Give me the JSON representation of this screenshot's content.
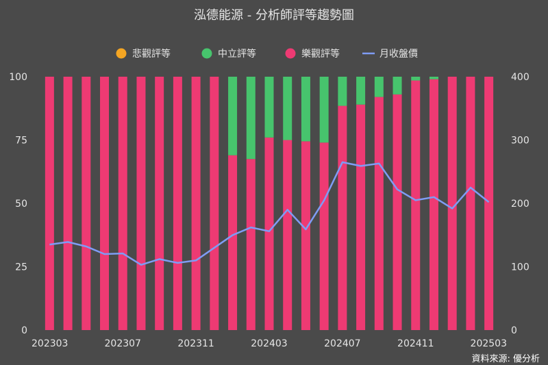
{
  "chart_data": {
    "type": "bar",
    "title": "泓德能源 - 分析師評等趨勢圖",
    "source": "資料來源: 優分析",
    "categories": [
      "202303",
      "202304",
      "202305",
      "202306",
      "202307",
      "202308",
      "202309",
      "202310",
      "202311",
      "202312",
      "202401",
      "202402",
      "202403",
      "202404",
      "202405",
      "202406",
      "202407",
      "202408",
      "202409",
      "202410",
      "202411",
      "202412",
      "202501",
      "202502",
      "202503"
    ],
    "x_tick_labels": [
      "202303",
      "202307",
      "202311",
      "202403",
      "202407",
      "202411",
      "202503"
    ],
    "x_tick_indices": [
      0,
      4,
      8,
      12,
      16,
      20,
      24
    ],
    "series": [
      {
        "name": "悲觀評等",
        "color": "#f5a623",
        "type": "bar",
        "values": [
          0,
          0,
          0,
          0,
          0,
          0,
          0,
          0,
          0,
          0,
          0,
          0,
          0,
          0,
          0,
          0,
          0,
          0,
          0,
          0,
          0,
          0,
          0,
          0,
          0
        ]
      },
      {
        "name": "中立評等",
        "color": "#47c46d",
        "type": "bar",
        "values": [
          0,
          0,
          0,
          0,
          0,
          0,
          0,
          0,
          0,
          0,
          31,
          32.5,
          24,
          25,
          25.5,
          26,
          11.5,
          11,
          8,
          7,
          1.5,
          1,
          0,
          0,
          0
        ]
      },
      {
        "name": "樂觀評等",
        "color": "#ee3a73",
        "type": "bar",
        "values": [
          100,
          100,
          100,
          100,
          100,
          100,
          100,
          100,
          100,
          100,
          69,
          67.5,
          76,
          75,
          74.5,
          74,
          88.5,
          89,
          92,
          93,
          98.5,
          99,
          100,
          100,
          100
        ]
      },
      {
        "name": "月收盤價",
        "color": "#7f9cf5",
        "type": "line",
        "axis": "right",
        "values": [
          135,
          139,
          132,
          120,
          121,
          103,
          112,
          106,
          110,
          130,
          150,
          162,
          156,
          190,
          159,
          205,
          265,
          259,
          263,
          222,
          205,
          210,
          192,
          225,
          202
        ]
      }
    ],
    "ylim_left": [
      0,
      100
    ],
    "yticks_left": [
      "0",
      "25",
      "50",
      "75",
      "100"
    ],
    "ylim_right": [
      0,
      400
    ],
    "yticks_right": [
      "0",
      "100",
      "200",
      "300",
      "400"
    ],
    "legend_position": "top-center",
    "grid": false
  }
}
